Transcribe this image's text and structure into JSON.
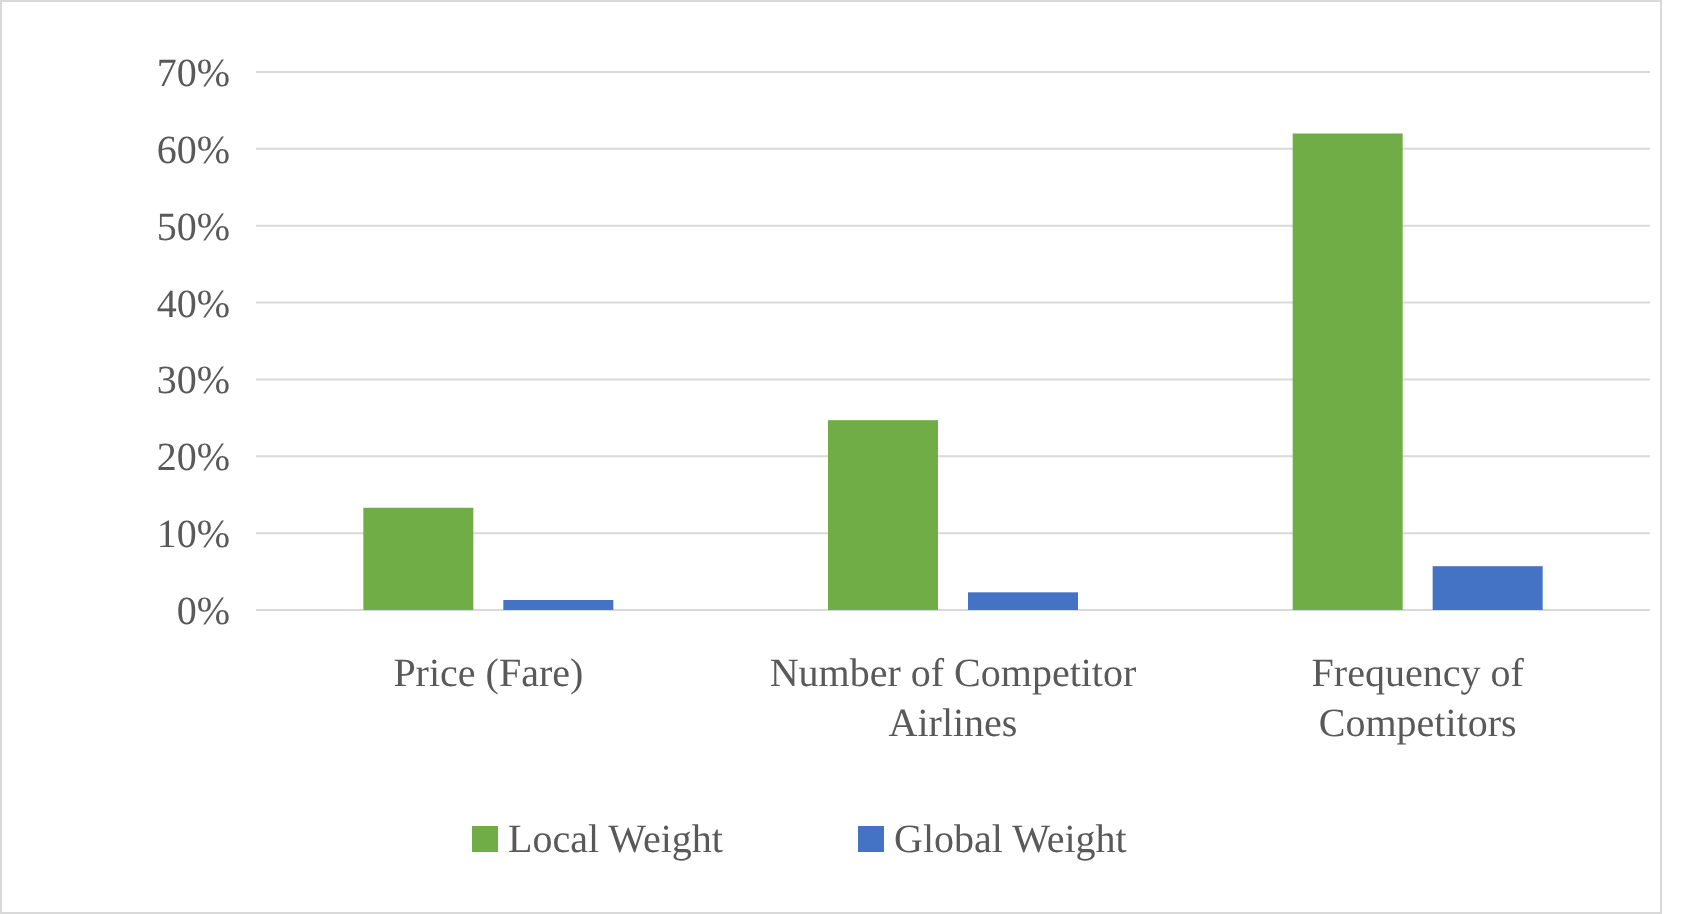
{
  "chart_data": {
    "type": "bar",
    "categories": [
      "Price (Fare)",
      "Number of Competitor Airlines",
      "Frequency of Competitors"
    ],
    "series": [
      {
        "name": "Local Weight",
        "color": "#70ad47",
        "values": [
          13.3,
          24.7,
          62.0
        ]
      },
      {
        "name": "Global Weight",
        "color": "#4472c4",
        "values": [
          1.3,
          2.3,
          5.7
        ]
      }
    ],
    "ylim": [
      0,
      70
    ],
    "yticks": [
      {
        "value": 0,
        "label": "0%"
      },
      {
        "value": 10,
        "label": "10%"
      },
      {
        "value": 20,
        "label": "20%"
      },
      {
        "value": 30,
        "label": "30%"
      },
      {
        "value": 40,
        "label": "40%"
      },
      {
        "value": 50,
        "label": "50%"
      },
      {
        "value": 60,
        "label": "60%"
      },
      {
        "value": 70,
        "label": "70%"
      }
    ],
    "grid": "y",
    "legend": "bottom"
  }
}
